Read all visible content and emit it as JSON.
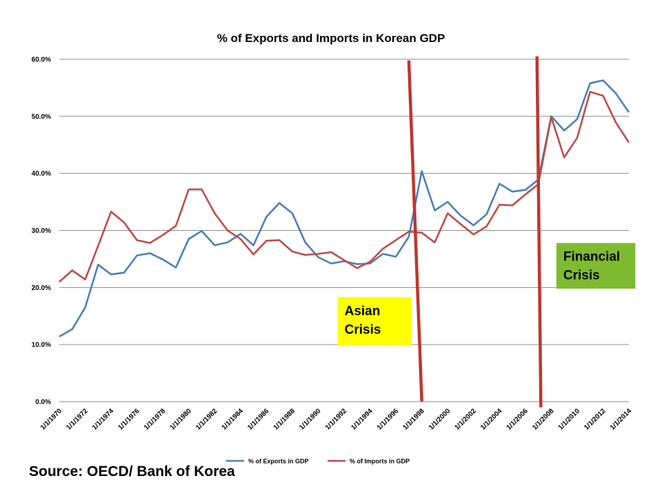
{
  "source_text": "Source: OECD/ Bank of Korea",
  "chart_data": {
    "type": "line",
    "title": "% of Exports and Imports in Korean GDP",
    "xlabel": "",
    "ylabel": "",
    "x": [
      1970,
      1971,
      1972,
      1973,
      1974,
      1975,
      1976,
      1977,
      1978,
      1979,
      1980,
      1981,
      1982,
      1983,
      1984,
      1985,
      1986,
      1987,
      1988,
      1989,
      1990,
      1991,
      1992,
      1993,
      1994,
      1995,
      1996,
      1997,
      1998,
      1999,
      2000,
      2001,
      2002,
      2003,
      2004,
      2005,
      2006,
      2007,
      2008,
      2009,
      2010,
      2011,
      2012,
      2013,
      2014
    ],
    "x_tick_labels": [
      "1/1/1970",
      "1/1/1972",
      "1/1/1974",
      "1/1/1976",
      "1/1/1978",
      "1/1/1980",
      "1/1/1982",
      "1/1/1984",
      "1/1/1986",
      "1/1/1988",
      "1/1/1990",
      "1/1/1992",
      "1/1/1994",
      "1/1/1996",
      "1/1/1998",
      "1/1/2000",
      "1/1/2002",
      "1/1/2004",
      "1/1/2006",
      "1/1/2008",
      "1/1/2010",
      "1/1/2012",
      "1/1/2014"
    ],
    "x_tick_years": [
      1970,
      1972,
      1974,
      1976,
      1978,
      1980,
      1982,
      1984,
      1986,
      1988,
      1990,
      1992,
      1994,
      1996,
      1998,
      2000,
      2002,
      2004,
      2006,
      2008,
      2010,
      2012,
      2014
    ],
    "y_tick_labels": [
      "0.0%",
      "10.0%",
      "20.0%",
      "30.0%",
      "40.0%",
      "50.0%",
      "60.0%"
    ],
    "y_tick_values": [
      0,
      10,
      20,
      30,
      40,
      50,
      60
    ],
    "ylim": [
      0,
      60
    ],
    "grid": "horizontal major",
    "legend_position": "bottom",
    "series": [
      {
        "name": "% of Exports in GDP",
        "color": "#4a7ebb",
        "values": [
          11.4,
          12.7,
          16.5,
          24.0,
          22.3,
          22.6,
          25.6,
          26.0,
          24.9,
          23.5,
          28.5,
          29.9,
          27.4,
          27.9,
          29.4,
          27.4,
          32.4,
          34.8,
          33.0,
          27.9,
          25.3,
          24.2,
          24.6,
          24.1,
          24.2,
          25.9,
          25.4,
          28.9,
          40.4,
          33.5,
          35.0,
          32.6,
          30.9,
          32.8,
          38.2,
          36.8,
          37.1,
          38.9,
          50.0,
          47.5,
          49.5,
          55.8,
          56.3,
          54.0,
          50.7
        ]
      },
      {
        "name": "% of Imports in GDP",
        "color": "#be4b48",
        "values": [
          21.0,
          23.0,
          21.4,
          27.3,
          33.3,
          31.4,
          28.3,
          27.8,
          29.2,
          30.8,
          37.2,
          37.2,
          33.0,
          30.0,
          28.5,
          25.8,
          28.2,
          28.3,
          26.3,
          25.7,
          25.9,
          26.2,
          24.8,
          23.4,
          24.5,
          26.8,
          28.3,
          29.8,
          29.6,
          27.9,
          33.0,
          31.1,
          29.3,
          30.7,
          34.5,
          34.4,
          36.3,
          38.1,
          49.9,
          42.8,
          46.2,
          54.3,
          53.6,
          48.9,
          45.4
        ]
      }
    ],
    "annotations": [
      {
        "lines": [
          "Asian",
          "Crisis"
        ],
        "fill": "#ffff00",
        "x_from": 1991.5,
        "x_to": 1997.2,
        "y_from": 9.9,
        "y_to": 18.3
      },
      {
        "lines": [
          "Financial",
          "Crisis"
        ],
        "fill": "#7fbb31",
        "x_from": 2008.4,
        "x_to": 2014.5,
        "y_from": 19.8,
        "y_to": 27.8
      }
    ],
    "marker_lines": [
      {
        "color": "#c0352f",
        "x_top": 1997.0,
        "y_top": 59.8,
        "x_bottom": 1998.0,
        "y_bottom": 0.0
      },
      {
        "color": "#c0352f",
        "x_top": 2006.9,
        "y_top": 60.5,
        "x_bottom": 2007.2,
        "y_bottom": -1.0
      }
    ]
  }
}
